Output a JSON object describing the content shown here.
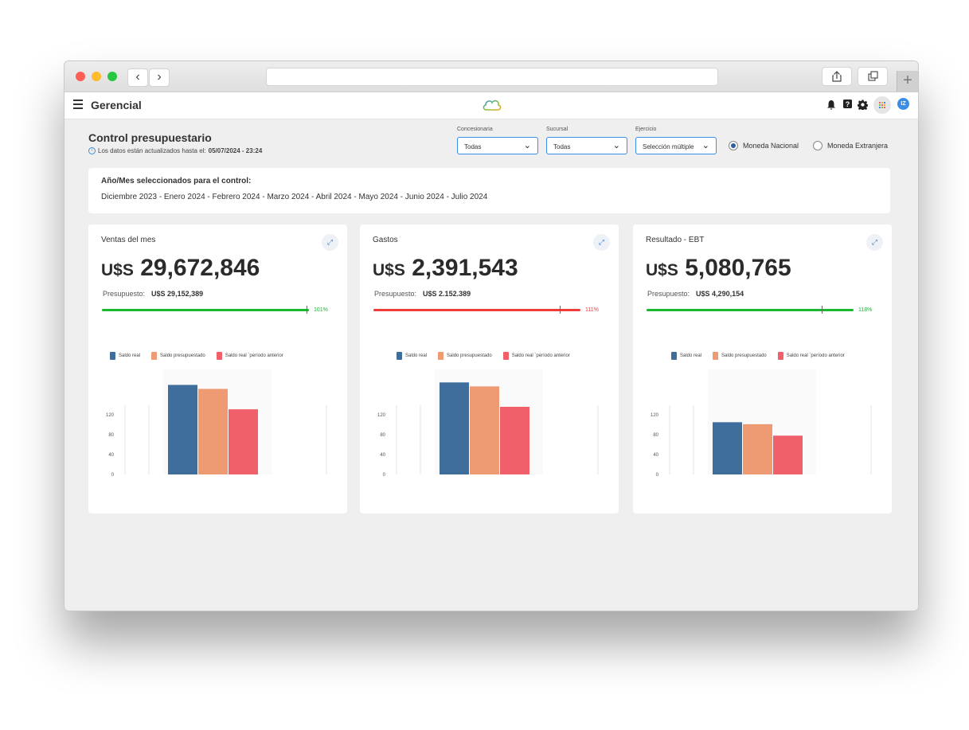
{
  "app": {
    "title": "Gerencial",
    "avatar_initials": "IZ"
  },
  "page": {
    "title": "Control presupuestario",
    "updated_prefix": "Los datos están actualizados hasta el:",
    "updated_value": "05/07/2024 - 23:24"
  },
  "filters": {
    "concesionaria": {
      "label": "Concesionaria",
      "value": "Todas"
    },
    "sucursal": {
      "label": "Sucursal",
      "value": "Todas"
    },
    "ejercicio": {
      "label": "Ejercicio",
      "value": "Selección múltiple"
    }
  },
  "currency": {
    "options": [
      {
        "label": "Moneda Nacional",
        "selected": true
      },
      {
        "label": "Moneda Extranjera",
        "selected": false
      }
    ]
  },
  "period": {
    "title": "Año/Mes seleccionados para el control:",
    "list": "Diciembre 2023 - Enero 2024 - Febrero 2024 - Marzo 2024 - Abril 2024 - Mayo 2024 - Junio 2024 - Julio 2024"
  },
  "colors": {
    "real": "#3f6e9c",
    "budget": "#ee9b73",
    "previous": "#f0606a",
    "good": "#19b832",
    "bad": "#ee3b3b"
  },
  "legend": {
    "real": "Saldo real",
    "budget": "Saldo presupuestado",
    "previous": "Saldo real ´período anterior"
  },
  "cards": [
    {
      "title": "Ventas del mes",
      "currency": "U$S",
      "value": "29,672,846",
      "budget_label": "Presupuesto:",
      "budget_value": "U$S 29,152,389",
      "percent_label": "101%",
      "percent": 101,
      "status": "good"
    },
    {
      "title": "Gastos",
      "currency": "U$S",
      "value": "2,391,543",
      "budget_label": "Presupuesto:",
      "budget_value": "U$S 2.152.389",
      "percent_label": "111%",
      "percent": 111,
      "status": "bad"
    },
    {
      "title": "Resultado - EBT",
      "currency": "U$S",
      "value": "5,080,765",
      "budget_label": "Presupuesto:",
      "budget_value": "U$S 4,290,154",
      "percent_label": "118%",
      "percent": 118,
      "status": "good"
    }
  ],
  "chart_data": [
    {
      "type": "bar",
      "categories": [
        "Saldo real",
        "Saldo presupuestado",
        "Saldo real ´período anterior"
      ],
      "values": [
        180,
        172,
        131
      ],
      "yticks": [
        "0",
        "40",
        "80",
        "120"
      ]
    },
    {
      "type": "bar",
      "categories": [
        "Saldo real",
        "Saldo presupuestado",
        "Saldo real ´período anterior"
      ],
      "values": [
        185,
        177,
        136
      ],
      "yticks": [
        "0",
        "40",
        "80",
        "120"
      ]
    },
    {
      "type": "bar",
      "categories": [
        "Saldo real",
        "Saldo presupuestado",
        "Saldo real ´período anterior"
      ],
      "values": [
        105,
        101,
        78
      ],
      "yticks": [
        "0",
        "40",
        "80",
        "120"
      ]
    }
  ]
}
